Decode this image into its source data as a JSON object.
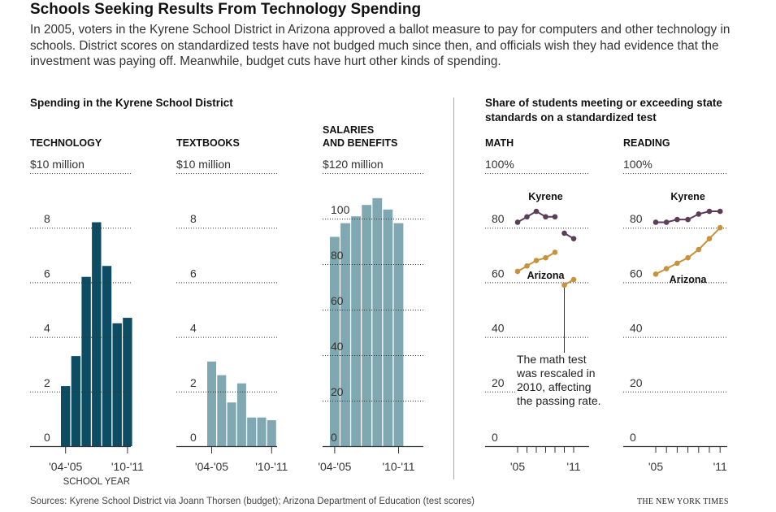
{
  "headline": "Schools Seeking Results From Technology Spending",
  "intro": "In 2005, voters in the Kyrene School District in Arizona approved a ballot measure to pay for computers and other technology in schools. District scores on standardized tests have not budged much since then, and officials wish they had evidence that the investment was paying off. Meanwhile, budget cuts have hurt other kinds of spending.",
  "left_section_title": "Spending in the Kyrene School District",
  "right_section_title": "Share of students meeting or exceeding state standards on a standardized test",
  "colors": {
    "technology": "#0d4d63",
    "other_spending": "#7fa8b2",
    "kyrene": "#5c3d58",
    "arizona": "#c8913c"
  },
  "chart_data": [
    {
      "type": "bar",
      "title": "TECHNOLOGY",
      "unit_label": "$10 million",
      "ylim": [
        0,
        10
      ],
      "yticks": [
        "0",
        "2",
        "4",
        "6",
        "8"
      ],
      "categories": [
        "'04-'05",
        "'05-'06",
        "'06-'07",
        "'07-'08",
        "'08-'09",
        "'09-'10",
        "'10-'11"
      ],
      "values": [
        2.2,
        3.3,
        6.2,
        8.2,
        6.6,
        4.5,
        4.7
      ],
      "xticklabels": [
        "'04-'05",
        "'10-'11"
      ],
      "xlabel": "SCHOOL YEAR"
    },
    {
      "type": "bar",
      "title": "TEXTBOOKS",
      "unit_label": "$10 million",
      "ylim": [
        0,
        10
      ],
      "yticks": [
        "0",
        "2",
        "4",
        "6",
        "8"
      ],
      "categories": [
        "'04-'05",
        "'05-'06",
        "'06-'07",
        "'07-'08",
        "'08-'09",
        "'09-'10",
        "'10-'11"
      ],
      "values": [
        3.1,
        2.6,
        1.6,
        2.3,
        1.05,
        1.05,
        0.95
      ],
      "xticklabels": [
        "'04-'05",
        "'10-'11"
      ]
    },
    {
      "type": "bar",
      "title": "SALARIES AND BENEFITS",
      "unit_label": "$120 million",
      "ylim": [
        0,
        120
      ],
      "yticks": [
        "0",
        "20",
        "40",
        "60",
        "80",
        "100"
      ],
      "categories": [
        "'04-'05",
        "'05-'06",
        "'06-'07",
        "'07-'08",
        "'08-'09",
        "'09-'10",
        "'10-'11"
      ],
      "values": [
        92,
        98,
        101,
        106,
        109,
        104,
        98
      ],
      "xticklabels": [
        "'04-'05",
        "'10-'11"
      ]
    },
    {
      "type": "line",
      "title": "MATH",
      "unit_label": "100%",
      "ylim": [
        0,
        100
      ],
      "yticks": [
        "0",
        "20",
        "40",
        "60",
        "80"
      ],
      "x": [
        "2005",
        "2006",
        "2007",
        "2008",
        "2009",
        "2010",
        "2011"
      ],
      "xticklabels": [
        "'05",
        "'11"
      ],
      "series": [
        {
          "name": "Kyrene",
          "segments": [
            [
              [
                0,
                82
              ],
              [
                1,
                84
              ],
              [
                2,
                86
              ],
              [
                3,
                84
              ],
              [
                4,
                84
              ]
            ],
            [
              [
                5,
                78
              ],
              [
                6,
                76
              ]
            ]
          ]
        },
        {
          "name": "Arizona",
          "segments": [
            [
              [
                0,
                64
              ],
              [
                1,
                66
              ],
              [
                2,
                68
              ],
              [
                3,
                69
              ],
              [
                4,
                71
              ]
            ],
            [
              [
                5,
                59
              ],
              [
                6,
                61
              ]
            ]
          ]
        }
      ],
      "annotation": "The math test was rescaled in 2010, affecting the passing rate."
    },
    {
      "type": "line",
      "title": "READING",
      "unit_label": "100%",
      "ylim": [
        0,
        100
      ],
      "yticks": [
        "0",
        "20",
        "40",
        "60",
        "80"
      ],
      "x": [
        "2005",
        "2006",
        "2007",
        "2008",
        "2009",
        "2010",
        "2011"
      ],
      "xticklabels": [
        "'05",
        "'11"
      ],
      "series": [
        {
          "name": "Kyrene",
          "segments": [
            [
              [
                0,
                82
              ],
              [
                1,
                82
              ],
              [
                2,
                83
              ],
              [
                3,
                83
              ],
              [
                4,
                85
              ],
              [
                5,
                86
              ],
              [
                6,
                86
              ]
            ]
          ]
        },
        {
          "name": "Arizona",
          "segments": [
            [
              [
                0,
                63
              ],
              [
                1,
                65
              ],
              [
                2,
                67
              ],
              [
                3,
                69
              ],
              [
                4,
                72
              ],
              [
                5,
                76
              ],
              [
                6,
                80
              ]
            ]
          ]
        }
      ]
    }
  ],
  "source": "Sources: Kyrene School District via Joann Thorsen (budget); Arizona Department of Education (test scores)",
  "credit": "THE NEW YORK TIMES"
}
